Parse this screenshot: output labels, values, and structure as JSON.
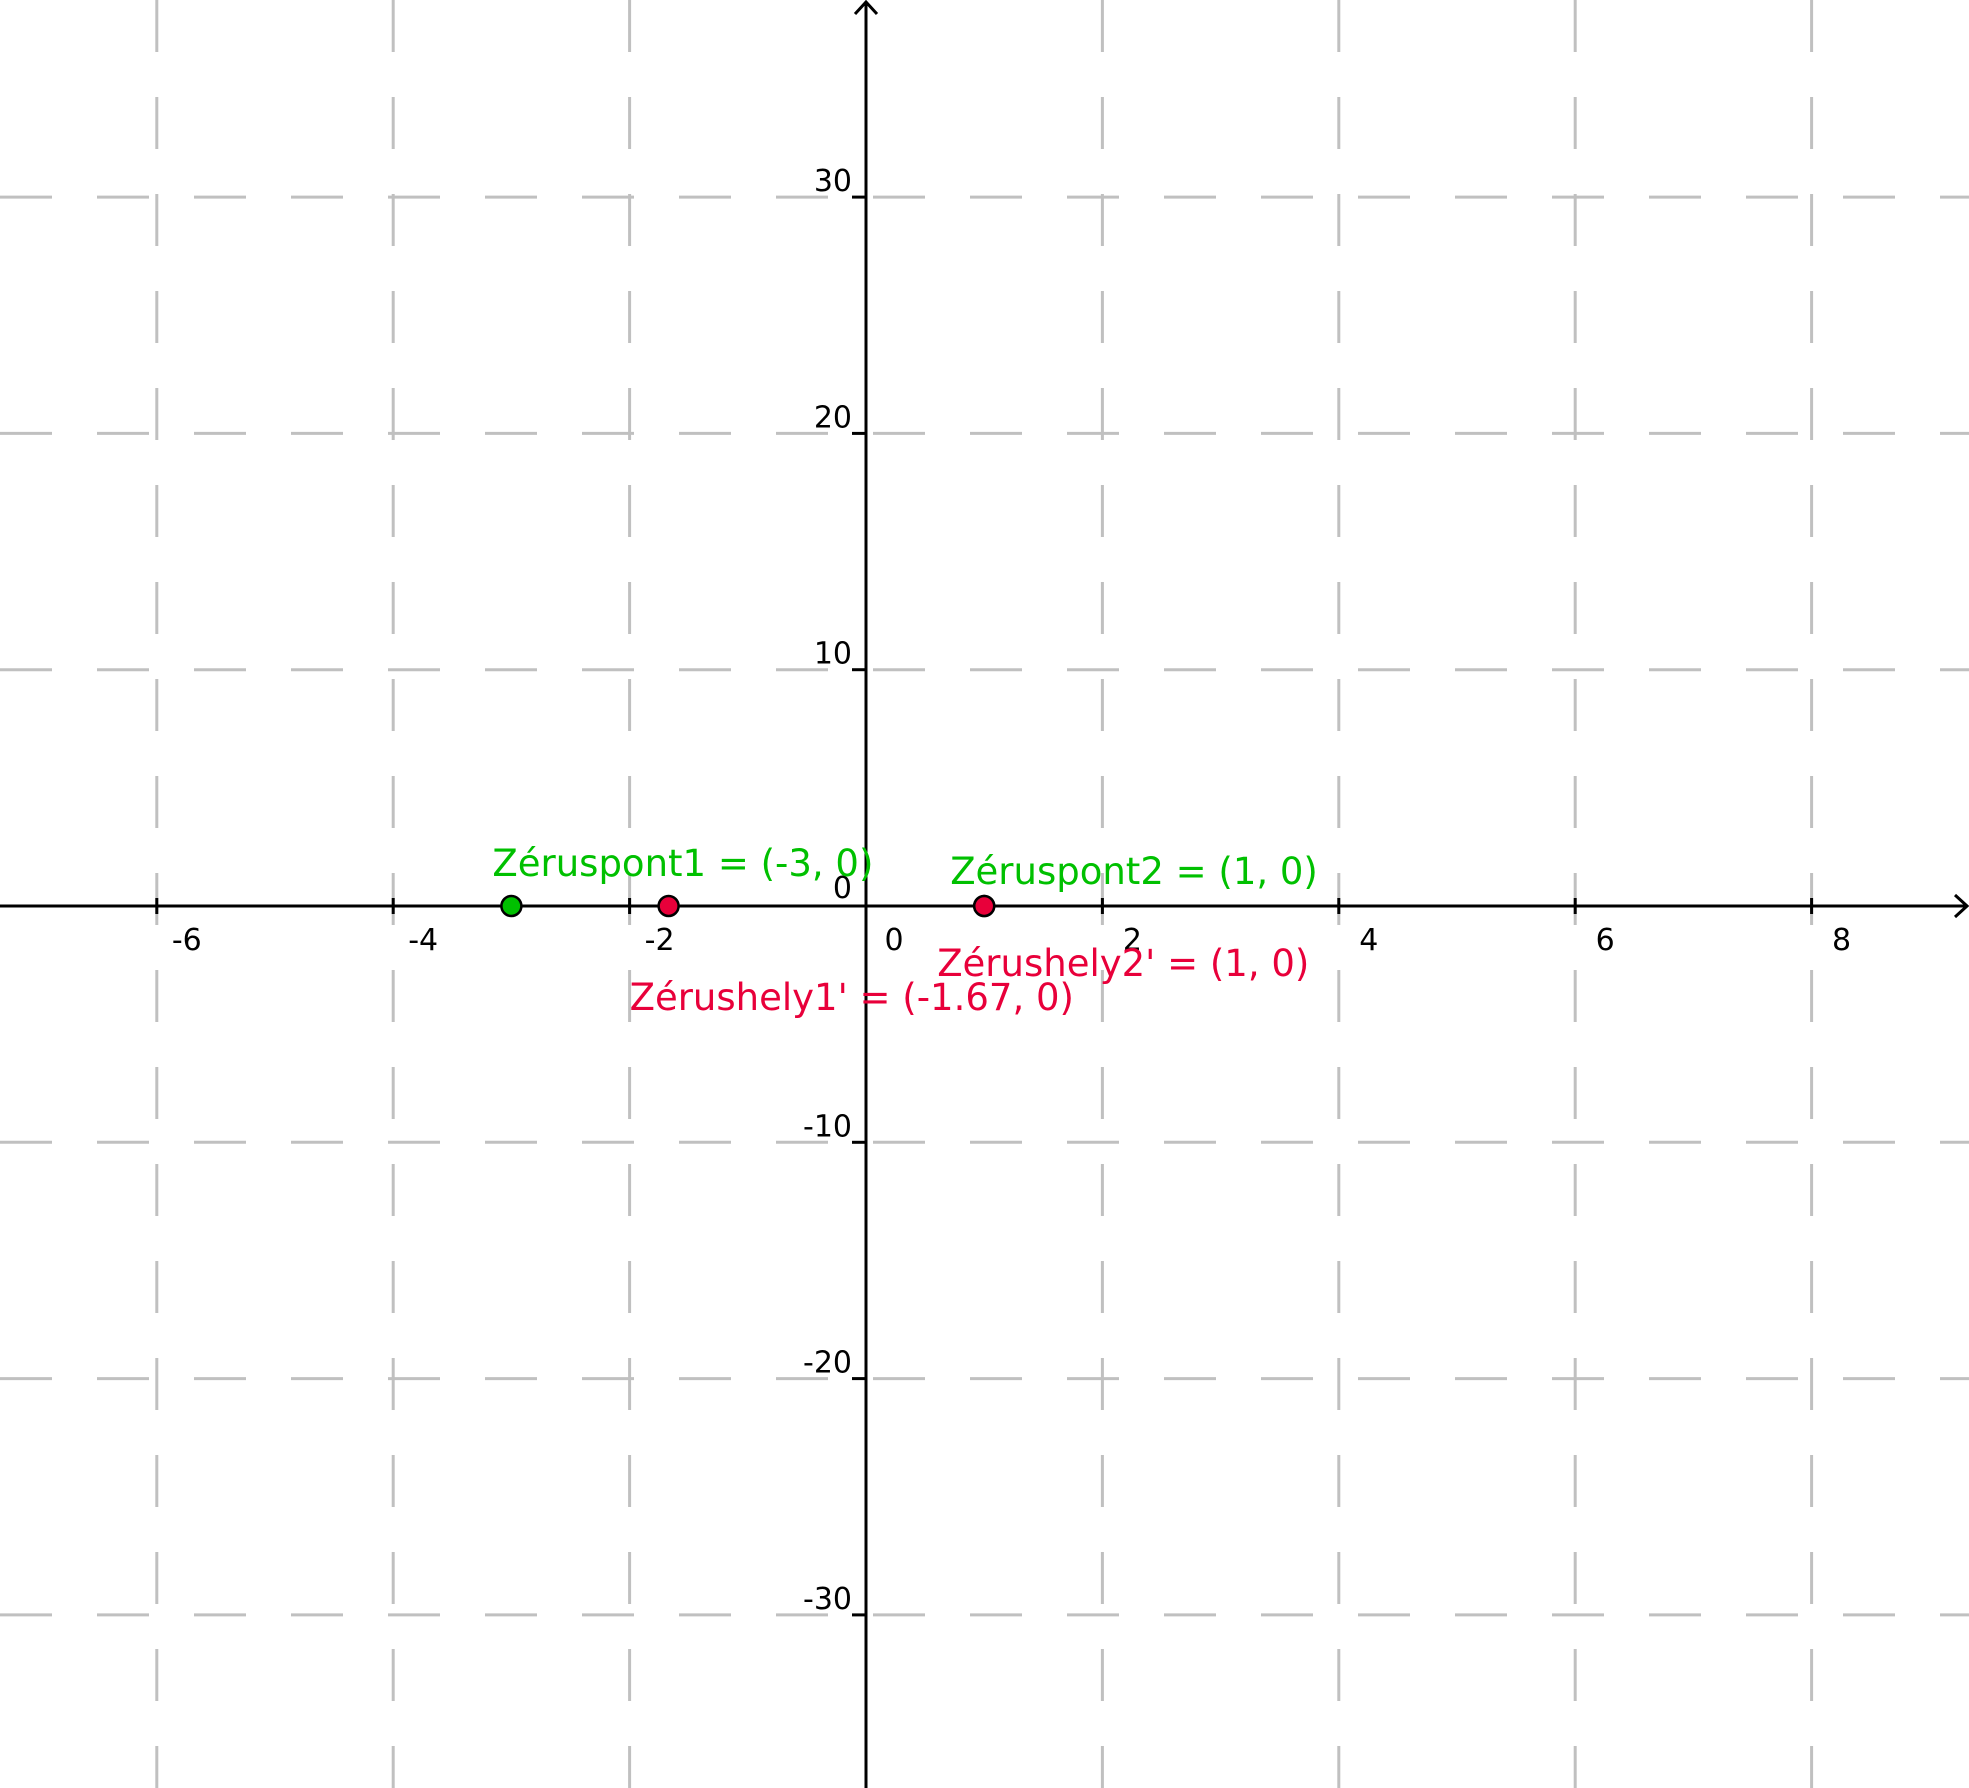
{
  "chart_data": {
    "type": "scatter",
    "title": "",
    "xlabel": "",
    "ylabel": "",
    "xlim": [
      -7.33,
      9.33
    ],
    "ylim": [
      -37.8,
      38.3
    ],
    "grid": true,
    "origin_label": "0",
    "x_ticks": [
      {
        "value": -6,
        "label": "-6"
      },
      {
        "value": -4,
        "label": "-4"
      },
      {
        "value": -2,
        "label": "-2"
      },
      {
        "value": 0,
        "label": "0"
      },
      {
        "value": 2,
        "label": "2"
      },
      {
        "value": 4,
        "label": "4"
      },
      {
        "value": 6,
        "label": "6"
      },
      {
        "value": 8,
        "label": "8"
      }
    ],
    "y_ticks": [
      {
        "value": 30,
        "label": "30"
      },
      {
        "value": 20,
        "label": "20"
      },
      {
        "value": 10,
        "label": "10"
      },
      {
        "value": -10,
        "label": "-10"
      },
      {
        "value": -20,
        "label": "-20"
      },
      {
        "value": -30,
        "label": "-30"
      }
    ],
    "points": [
      {
        "x": -3,
        "y": 0,
        "label": "Zéruspont1 = (-3, 0)",
        "color": "#00c000",
        "label_pos": "above"
      },
      {
        "x": 1,
        "y": 0,
        "label": "Zéruspont2 = (1, 0)",
        "color": "#00c000",
        "label_pos": "above"
      },
      {
        "x": -1.67,
        "y": 0,
        "label": "Zérushely1' = (-1.67, 0)",
        "color": "#e8003a",
        "label_pos": "below"
      },
      {
        "x": 1,
        "y": 0,
        "label": "Zérushely2' = (1, 0)",
        "color": "#e8003a",
        "label_pos": "below"
      }
    ]
  }
}
